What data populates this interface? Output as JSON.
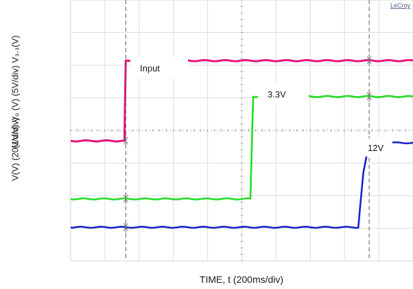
{
  "chart_data": {
    "type": "line",
    "title": "",
    "brand": "LeCroy",
    "ylabel_line1": "V(V) (20V/div) Vₒ (V) (5V/div) V₃.₃(V)",
    "ylabel_line2": "(1V/div)",
    "xlabel": "TIME, t (200ms/div)",
    "grid": true,
    "x_divisions": 10,
    "y_divisions": 8,
    "xlim": [
      0,
      10
    ],
    "ylim": [
      0,
      8
    ],
    "markers": {
      "t1": 1.61,
      "t2": 8.72
    },
    "series": [
      {
        "name": "Input",
        "color": "#e8127a",
        "x": [
          0,
          1.57,
          1.61,
          1.68,
          10
        ],
        "y": [
          3.68,
          3.68,
          6.14,
          6.14,
          6.14
        ]
      },
      {
        "name": "3.3V",
        "color": "#22dd22",
        "x": [
          0,
          5.25,
          5.33,
          10
        ],
        "y": [
          1.9,
          1.9,
          5.04,
          5.04
        ]
      },
      {
        "name": "12V",
        "color": "#1a23c8",
        "x": [
          0,
          8.4,
          8.45,
          8.55,
          8.65,
          8.8,
          9.0,
          9.2,
          10
        ],
        "y": [
          1.03,
          1.03,
          1.6,
          2.7,
          3.25,
          3.52,
          3.6,
          3.62,
          3.62
        ]
      }
    ],
    "annotations": [
      {
        "text": "Input",
        "series": "Input"
      },
      {
        "text": "3.3V",
        "series": "3.3V"
      },
      {
        "text": "12V",
        "series": "12V"
      }
    ]
  }
}
